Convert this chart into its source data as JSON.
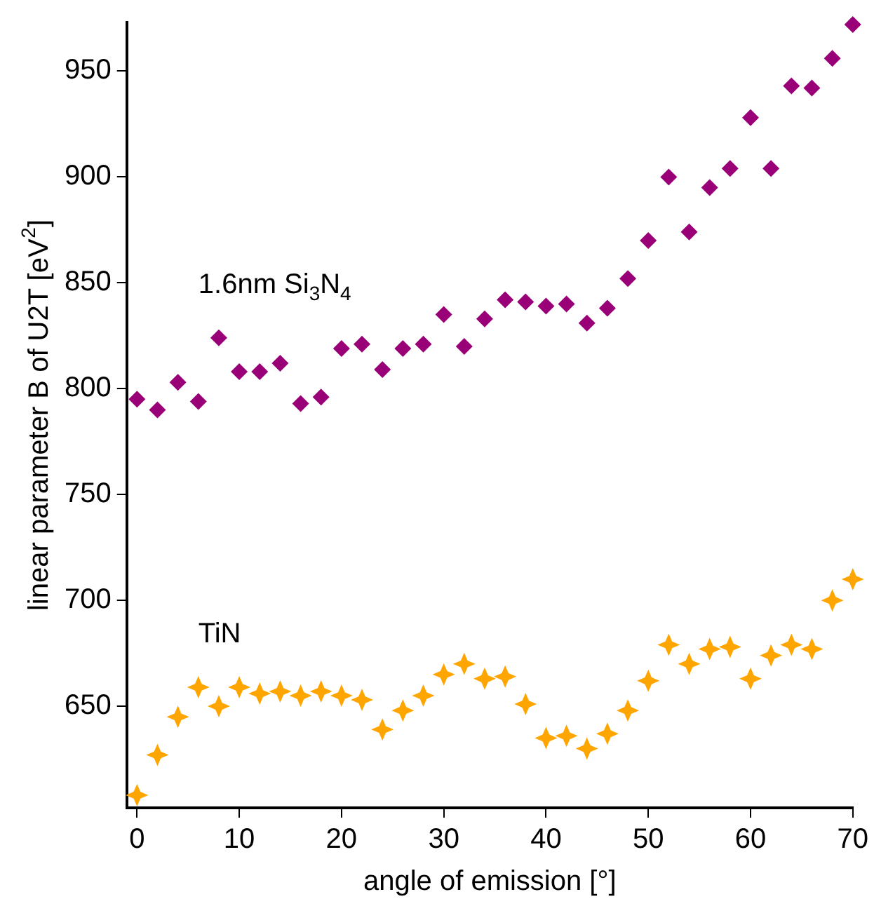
{
  "chart_data": {
    "type": "scatter",
    "xlabel": "angle of emission [°]",
    "ylabel": "linear parameter B of U2T [eV$^{2}$]",
    "x": [
      0,
      2,
      4,
      6,
      8,
      10,
      12,
      14,
      16,
      18,
      20,
      22,
      24,
      26,
      28,
      30,
      32,
      34,
      36,
      38,
      40,
      42,
      44,
      46,
      48,
      50,
      52,
      54,
      56,
      58,
      60,
      62,
      64,
      66,
      68,
      70
    ],
    "series": [
      {
        "name": "1.6nm Si$_{3}$N$_{4}$",
        "color": "#990077",
        "marker": "diamond",
        "values": [
          795,
          790,
          803,
          794,
          824,
          808,
          808,
          812,
          793,
          796,
          819,
          821,
          809,
          819,
          821,
          835,
          820,
          833,
          842,
          841,
          839,
          840,
          831,
          838,
          852,
          870,
          900,
          874,
          895,
          904,
          928,
          904,
          943,
          942,
          956,
          972
        ]
      },
      {
        "name": "TiN",
        "color": "#ffa500",
        "marker": "star",
        "values": [
          608,
          627,
          645,
          659,
          650,
          659,
          656,
          657,
          655,
          657,
          655,
          653,
          639,
          648,
          655,
          665,
          670,
          663,
          664,
          651,
          635,
          636,
          630,
          637,
          648,
          662,
          679,
          670,
          677,
          678,
          663,
          674,
          679,
          677,
          700,
          710
        ]
      }
    ],
    "xlim": [
      -1,
      70
    ],
    "xticks": [
      0,
      10,
      20,
      30,
      40,
      50,
      60,
      70
    ],
    "ylim": [
      602,
      973
    ],
    "yticks": [
      650,
      700,
      750,
      800,
      850,
      900,
      950
    ],
    "grid": false,
    "legend": false
  }
}
